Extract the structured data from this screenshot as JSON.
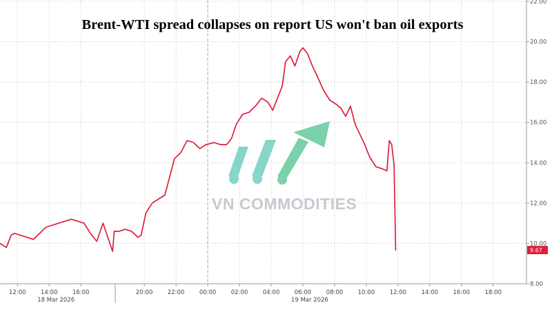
{
  "colors": {
    "series": "#dc1e3c",
    "grid": "#bdbdbd",
    "watermark_teal": "#5ec9b8",
    "watermark_green": "#4fc28f",
    "watermark_text": "#c5cbd1"
  },
  "watermark": {
    "text": "VN COMMODITIES",
    "icon": "rising-chart-logo-icon"
  },
  "chart_data": {
    "type": "line",
    "title": "Brent-WTI spread collapses on report US won't ban oil exports",
    "xlabel": "",
    "ylabel": "",
    "ylim": [
      8,
      22
    ],
    "xlim_hours": [
      10.9,
      44.1
    ],
    "y_ticks": [
      "8.00",
      "10.00",
      "12.00",
      "14.00",
      "16.00",
      "18.00",
      "20.00",
      "22.00"
    ],
    "x_ticks": [
      "12:00",
      "14:00",
      "16:00",
      "20:00",
      "22:00",
      "00:00",
      "02:00",
      "04:00",
      "06:00",
      "08:00",
      "10:00",
      "12:00",
      "14:00",
      "16:00",
      "18:00"
    ],
    "x_tick_hours": [
      12,
      14,
      16,
      20,
      22,
      24,
      26,
      28,
      30,
      32,
      34,
      36,
      38,
      40,
      42
    ],
    "date_labels": [
      "18 Mar 2026",
      "19 Mar 2026"
    ],
    "date_label_hours": [
      15,
      31
    ],
    "session_break_hours": [
      18,
      24
    ],
    "grid": true,
    "last_value_label": "9.67",
    "series": [
      {
        "x": [
          10.9,
          11.3,
          11.6,
          11.8,
          12.2,
          12.6,
          13.0,
          13.4,
          13.8,
          14.2,
          14.6,
          15.0,
          15.4,
          15.8,
          16.2,
          16.6,
          17.0,
          17.4,
          17.7,
          18.0,
          18.1,
          18.4,
          18.8,
          19.2,
          19.6,
          19.8,
          20.1,
          20.5,
          20.9,
          21.3,
          21.6,
          21.9,
          22.3,
          22.7,
          23.1,
          23.5,
          23.9,
          24.4,
          24.8,
          25.2,
          25.5,
          25.8,
          26.2,
          26.6,
          27.0,
          27.4,
          27.8,
          28.1,
          28.4,
          28.7,
          28.9,
          29.2,
          29.5,
          29.8,
          30.0,
          30.3,
          30.6,
          30.9,
          31.3,
          31.7,
          32.1,
          32.4,
          32.7,
          33.0,
          33.3,
          33.6,
          33.9,
          34.2,
          34.6,
          35.0,
          35.3,
          35.45,
          35.6,
          35.75,
          35.85
        ],
        "values": [
          10.0,
          9.8,
          10.4,
          10.5,
          10.4,
          10.3,
          10.2,
          10.5,
          10.8,
          10.9,
          11.0,
          11.1,
          11.2,
          11.1,
          11.0,
          10.5,
          10.1,
          11.0,
          10.3,
          9.6,
          10.6,
          10.6,
          10.7,
          10.6,
          10.3,
          10.4,
          11.5,
          12.0,
          12.2,
          12.4,
          13.3,
          14.2,
          14.5,
          15.1,
          15.0,
          14.7,
          14.9,
          15.0,
          14.9,
          14.9,
          15.2,
          15.9,
          16.4,
          16.5,
          16.8,
          17.2,
          17.0,
          16.6,
          17.2,
          17.8,
          19.0,
          19.3,
          18.8,
          19.5,
          19.7,
          19.4,
          18.8,
          18.3,
          17.6,
          17.1,
          16.9,
          16.7,
          16.3,
          16.8,
          15.9,
          15.4,
          14.9,
          14.3,
          13.8,
          13.7,
          13.6,
          15.1,
          14.9,
          13.9,
          9.67
        ]
      }
    ]
  }
}
